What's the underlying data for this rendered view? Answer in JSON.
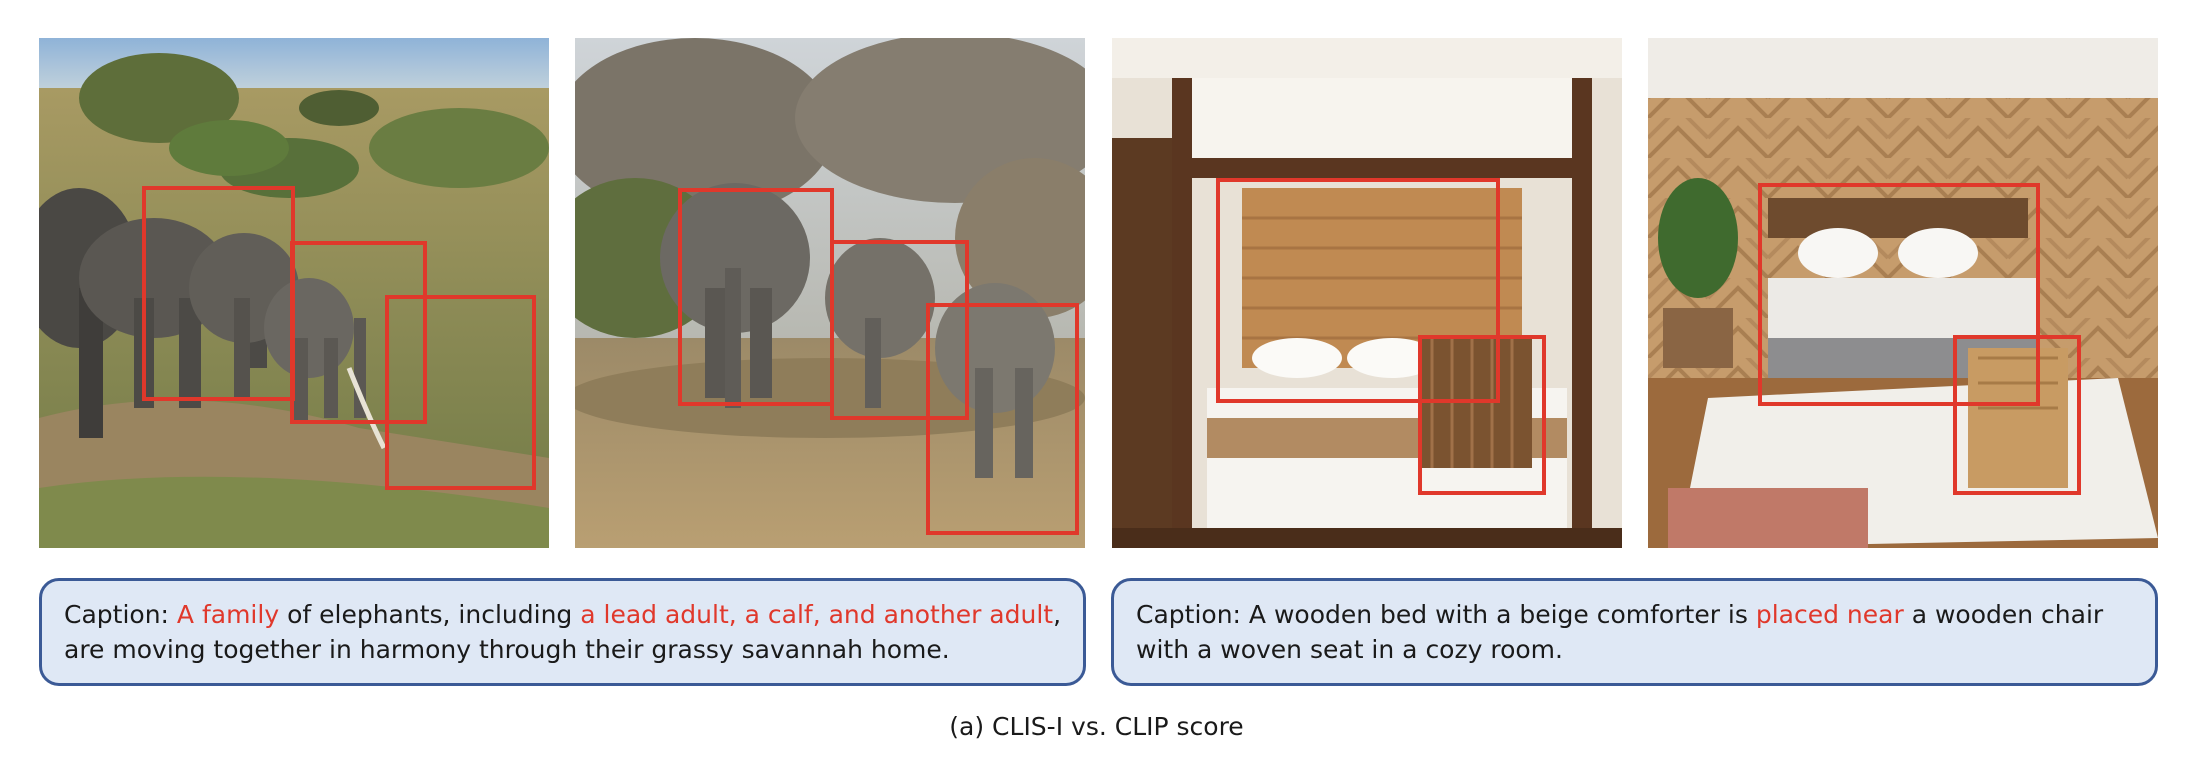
{
  "images": [
    {
      "name": "elephants-savanna-1",
      "boxes": [
        "lead adult",
        "calf",
        "another adult"
      ]
    },
    {
      "name": "elephants-savanna-2",
      "boxes": [
        "lead adult",
        "calf",
        "another adult"
      ]
    },
    {
      "name": "bedroom-canopy-bed",
      "boxes": [
        "bed",
        "chair"
      ]
    },
    {
      "name": "bedroom-herringbone-wall",
      "boxes": [
        "bed",
        "chair"
      ]
    }
  ],
  "captions": {
    "left": {
      "p1": "Caption: ",
      "h1": "A family",
      "p2": " of elephants, including ",
      "h2": "a lead adult, a calf, and another adult",
      "p3": ", are moving together in harmony through their grassy savannah home."
    },
    "right": {
      "p1": "Caption: A wooden bed with a beige comforter is ",
      "h1": "placed near",
      "p2": " a wooden chair with a woven seat in a cozy room."
    }
  },
  "figure_caption": "(a) CLIS-I vs. CLIP score",
  "colors": {
    "highlight": "#e0382b",
    "caption_border": "#3b5a96",
    "caption_fill": "#dfe8f5"
  }
}
